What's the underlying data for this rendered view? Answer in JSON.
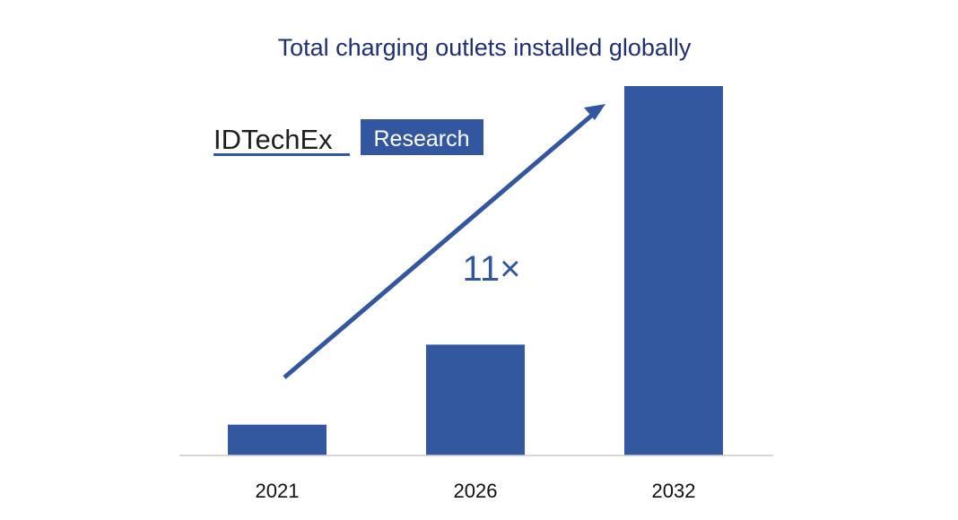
{
  "colors": {
    "bar": "#3358a0",
    "title": "#1f2f73",
    "arrow": "#3356a0",
    "baseline": "#cccccc",
    "logo_box": "#3356a0"
  },
  "logo": {
    "wordmark": "IDTechEx",
    "box_label": "Research"
  },
  "annotation": {
    "growth_label": "11×"
  },
  "chart_data": {
    "type": "bar",
    "title": "Total charging outlets installed globally",
    "xlabel": "",
    "ylabel": "",
    "categories": [
      "2021",
      "2026",
      "2032"
    ],
    "values": [
      1.0,
      3.6,
      12.0
    ],
    "ylim": [
      0,
      12.0
    ],
    "grid": false,
    "legend": "none",
    "value_unit": "relative (2021 = 1)"
  }
}
